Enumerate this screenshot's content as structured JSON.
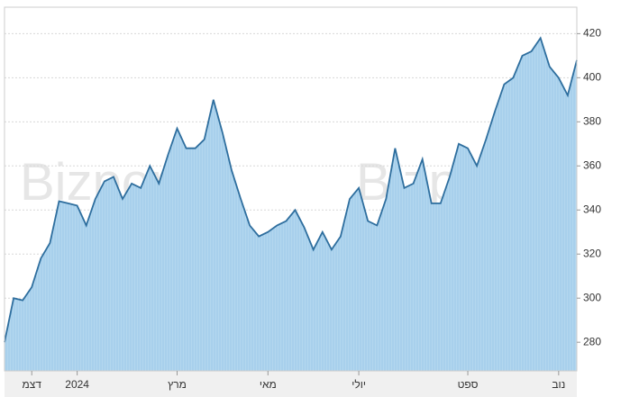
{
  "chart_data": {
    "type": "line",
    "watermark": "Bizportal",
    "categories": [
      null,
      null,
      null,
      "דצמ",
      null,
      null,
      null,
      null,
      "2024",
      null,
      null,
      null,
      null,
      null,
      null,
      null,
      null,
      null,
      null,
      "מרץ",
      null,
      null,
      null,
      null,
      null,
      null,
      null,
      null,
      null,
      "מאי",
      null,
      null,
      null,
      null,
      null,
      null,
      null,
      null,
      null,
      "יולי",
      null,
      null,
      null,
      null,
      null,
      null,
      null,
      null,
      null,
      null,
      null,
      "ספט",
      null,
      null,
      null,
      null,
      null,
      null,
      null,
      null,
      null,
      "נוב",
      null,
      null
    ],
    "series": [
      {
        "color": "#2e6e9e",
        "values": [
          280,
          300,
          299,
          305,
          318,
          325,
          344,
          343,
          342,
          333,
          345,
          353,
          355,
          345,
          352,
          350,
          360,
          352,
          365,
          377,
          368,
          368,
          372,
          390,
          375,
          358,
          345,
          333,
          328,
          330,
          333,
          335,
          340,
          332,
          322,
          330,
          322,
          328,
          345,
          350,
          335,
          333,
          345,
          368,
          350,
          352,
          363,
          343,
          343,
          355,
          370,
          368,
          360,
          372,
          385,
          397,
          400,
          410,
          412,
          418,
          405,
          400,
          392,
          408
        ]
      }
    ],
    "ylim": [
      267,
      432
    ],
    "yticks": [
      280,
      300,
      320,
      340,
      360,
      380,
      400,
      420
    ],
    "grid": true
  }
}
